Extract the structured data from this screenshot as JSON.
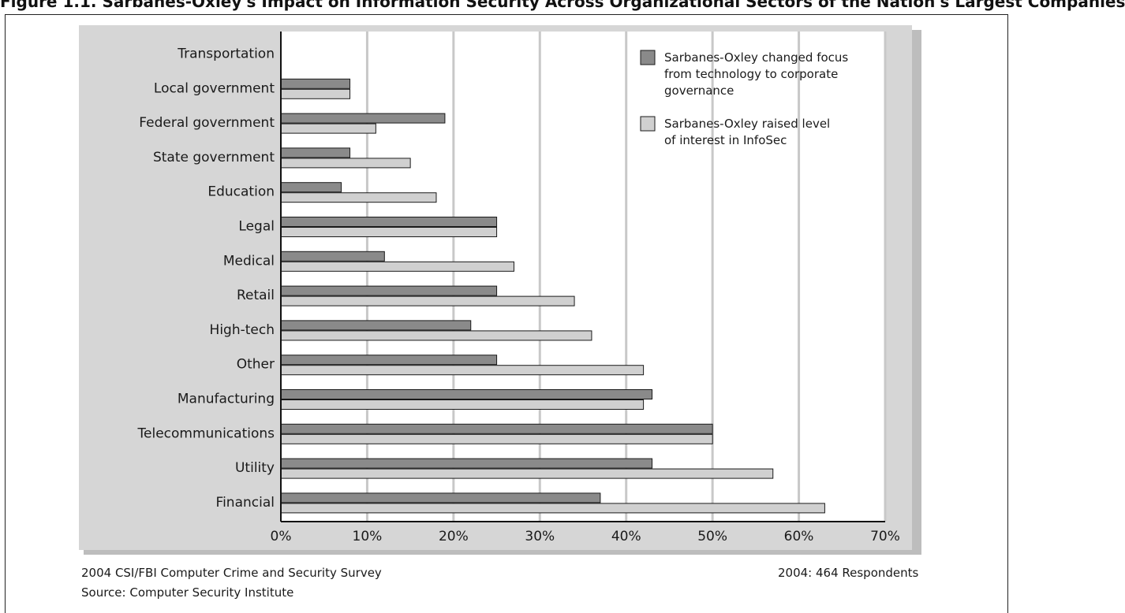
{
  "header": {
    "caption": "Figure 1.1. Sarbanes-Oxley's Impact on Information Security Across Organizational Sectors of the Nation's Largest Companies"
  },
  "chart_data": {
    "type": "bar",
    "orientation": "horizontal",
    "categories": [
      "Transportation",
      "Local government",
      "Federal government",
      "State government",
      "Education",
      "Legal",
      "Medical",
      "Retail",
      "High-tech",
      "Other",
      "Manufacturing",
      "Telecommunications",
      "Utility",
      "Financial"
    ],
    "series": [
      {
        "name": "Sarbanes-Oxley changed focus from technology to corporate governance",
        "values": [
          0,
          8,
          19,
          8,
          7,
          25,
          12,
          25,
          22,
          25,
          43,
          50,
          43,
          37
        ],
        "color": "#8a8a8a"
      },
      {
        "name": "Sarbanes-Oxley raised level of interest in InfoSec",
        "values": [
          0,
          8,
          11,
          15,
          18,
          25,
          27,
          34,
          36,
          42,
          42,
          50,
          57,
          63
        ],
        "color": "#d0d0d0"
      }
    ],
    "x_ticks": [
      "0%",
      "10%",
      "20%",
      "30%",
      "40%",
      "50%",
      "60%",
      "70%"
    ],
    "xlim": [
      0,
      70
    ],
    "grid": true,
    "legend_position": "top-right",
    "legend_lines": [
      [
        "Sarbanes-Oxley changed focus",
        "from technology to corporate",
        "governance"
      ],
      [
        "Sarbanes-Oxley raised level",
        "of interest in InfoSec"
      ]
    ]
  },
  "footer": {
    "survey": "2004 CSI/FBI Computer Crime and Security Survey",
    "source": "Source: Computer Security Institute",
    "respondents": "2004: 464 Respondents"
  }
}
